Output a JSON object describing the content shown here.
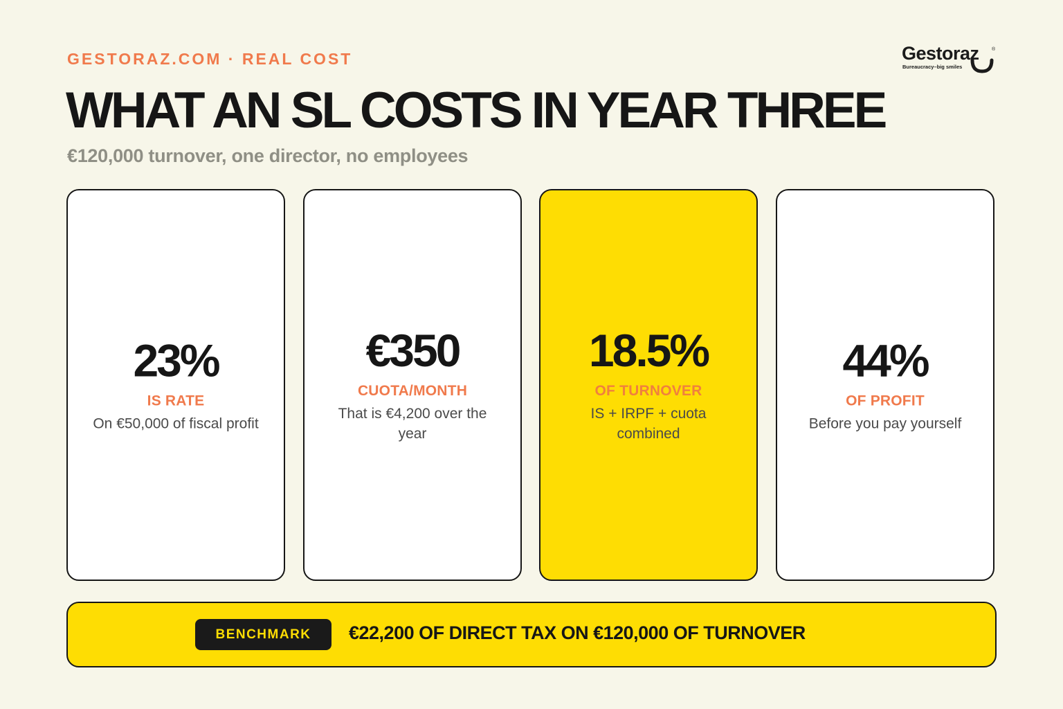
{
  "header": {
    "eyebrow": "GESTORAZ.COM · REAL COST",
    "title": "WHAT AN SL COSTS IN YEAR THREE",
    "subtitle": "€120,000 turnover, one director, no employees"
  },
  "logo": {
    "name": "Gestoraz",
    "registered_mark": "®",
    "tagline": "Bureaucracy–big smiles",
    "icon": "smile-icon"
  },
  "cards": [
    {
      "value": "23%",
      "label": "IS RATE",
      "description": "On €50,000 of fiscal profit",
      "highlighted": false
    },
    {
      "value": "€350",
      "label": "CUOTA/MONTH",
      "description": "That is €4,200 over the year",
      "highlighted": false
    },
    {
      "value": "18.5%",
      "label": "OF TURNOVER",
      "description": "IS + IRPF + cuota combined",
      "highlighted": true
    },
    {
      "value": "44%",
      "label": "OF PROFIT",
      "description": "Before you pay yourself",
      "highlighted": false
    }
  ],
  "benchmark": {
    "badge": "BENCHMARK",
    "text": "€22,200 OF DIRECT TAX ON €120,000 OF TURNOVER"
  },
  "colors": {
    "background": "#f7f6e9",
    "accent_orange": "#f07a4c",
    "highlight_yellow": "#fedd03",
    "ink": "#161616",
    "muted": "#8f8f85"
  }
}
